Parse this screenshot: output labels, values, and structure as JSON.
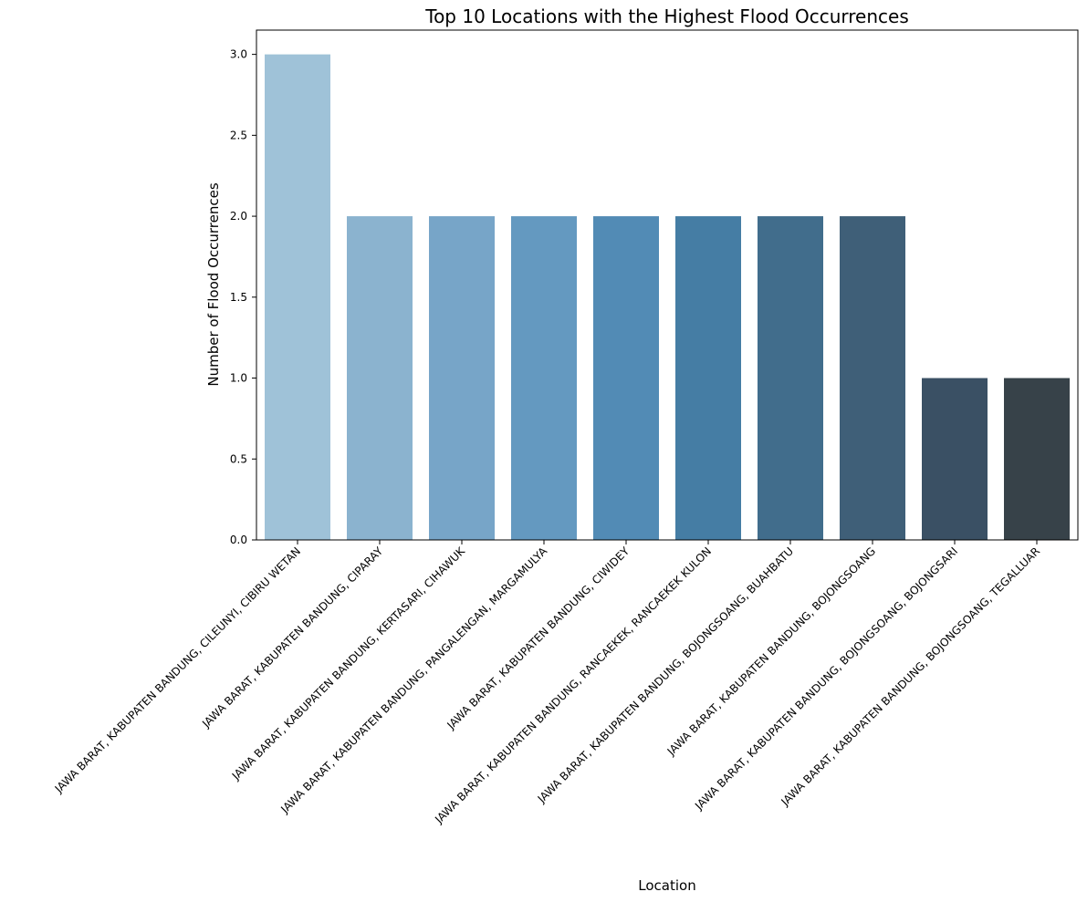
{
  "chart_data": {
    "type": "bar",
    "title": "Top 10 Locations with the Highest Flood Occurrences",
    "xlabel": "Location",
    "ylabel": "Number of Flood Occurrences",
    "ylim": [
      0,
      3.15
    ],
    "yticks": [
      "0.0",
      "0.5",
      "1.0",
      "1.5",
      "2.0",
      "2.5",
      "3.0"
    ],
    "grid": false,
    "categories": [
      "JAWA BARAT, KABUPATEN BANDUNG, CILEUNYI, CIBIRU WETAN",
      "JAWA BARAT, KABUPATEN BANDUNG, CIPARAY",
      "JAWA BARAT, KABUPATEN BANDUNG, KERTASARI, CIHAWUK",
      "JAWA BARAT, KABUPATEN BANDUNG, PANGALENGAN, MARGAMULYA",
      "JAWA BARAT, KABUPATEN BANDUNG, CIWIDEY",
      "JAWA BARAT, KABUPATEN BANDUNG, RANCAEKEK, RANCAEKEK KULON",
      "JAWA BARAT, KABUPATEN BANDUNG, BOJONGSOANG, BUAHBATU",
      "JAWA BARAT, KABUPATEN BANDUNG, BOJONGSOANG",
      "JAWA BARAT, KABUPATEN BANDUNG, BOJONGSOANG, BOJONGSARI",
      "JAWA BARAT, KABUPATEN BANDUNG, BOJONGSOANG, TEGALLUAR"
    ],
    "values": [
      3,
      2,
      2,
      2,
      2,
      2,
      2,
      2,
      1,
      1
    ],
    "colors": [
      "#9fc2d8",
      "#8bb3cf",
      "#77a5c8",
      "#6499c0",
      "#528bb5",
      "#457da4",
      "#416d8c",
      "#3f5f78",
      "#3a5064",
      "#374249"
    ]
  }
}
